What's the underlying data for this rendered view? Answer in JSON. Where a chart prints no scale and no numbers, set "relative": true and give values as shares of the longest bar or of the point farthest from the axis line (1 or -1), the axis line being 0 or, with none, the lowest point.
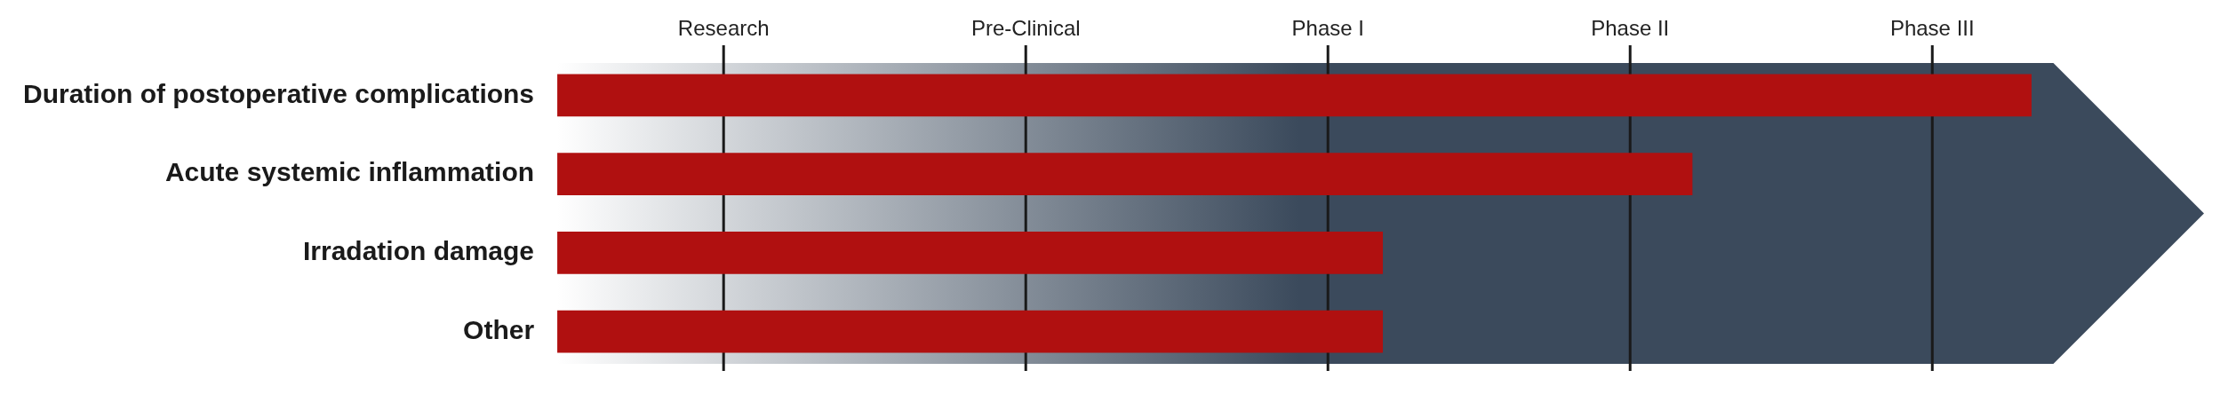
{
  "chart_data": {
    "type": "bar",
    "orientation": "horizontal",
    "relative": true,
    "categories": [
      "Duration of postoperative complications",
      "Acute systemic inflammation",
      "Irradation damage",
      "Other"
    ],
    "values": [
      1,
      0.77,
      0.56,
      0.56
    ],
    "color": "#b01010",
    "annotations": [
      "Research",
      "Pre-Clinical",
      "Phase I",
      "Phase II",
      "Phase III"
    ]
  }
}
